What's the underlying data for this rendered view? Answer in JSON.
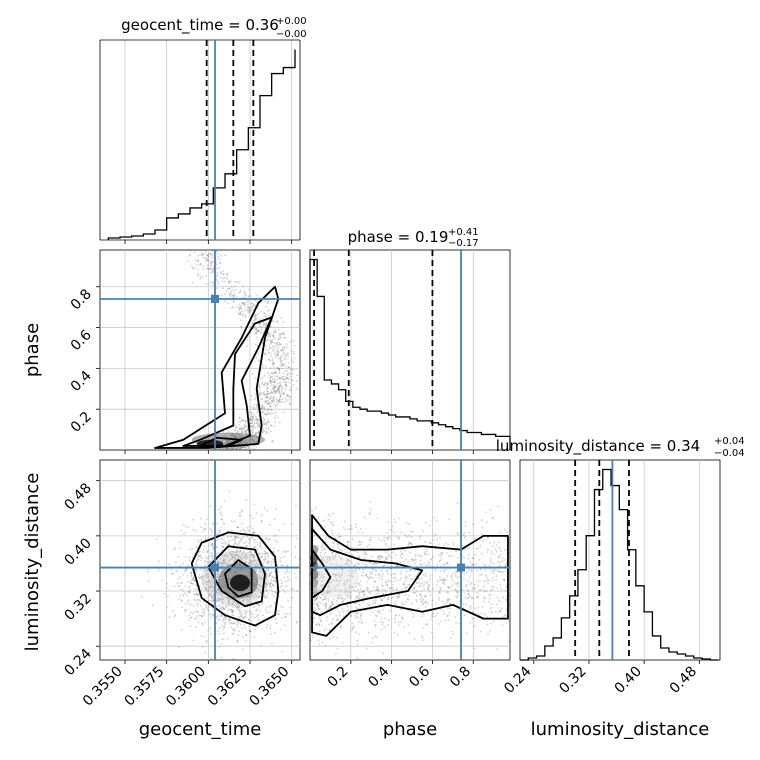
{
  "colors": {
    "truth": "#4682b4",
    "hist": "#000000",
    "grid": "#c8c8c8",
    "points": "#7f7f7f"
  },
  "chart_data": [
    {
      "id": "geocent_time_hist",
      "type": "histogram",
      "title_main": "geocent_time = 0.36",
      "title_sup": "+0.00",
      "title_sub": "−0.00",
      "xlim": [
        0.3535,
        0.3655
      ],
      "bins": [
        0.354,
        0.3547,
        0.3554,
        0.3561,
        0.3568,
        0.3575,
        0.3582,
        0.3589,
        0.3596,
        0.3603,
        0.361,
        0.3617,
        0.3624,
        0.3631,
        0.3638,
        0.3645,
        0.3652
      ],
      "counts": [
        0.01,
        0.015,
        0.02,
        0.03,
        0.05,
        0.11,
        0.13,
        0.16,
        0.18,
        0.26,
        0.33,
        0.45,
        0.56,
        0.72,
        0.83,
        0.86,
        0.95
      ],
      "quantiles": [
        0.3599,
        0.3615,
        0.3627
      ],
      "truth": 0.3604
    },
    {
      "id": "phase_hist",
      "type": "histogram",
      "title_main": "phase = 0.19",
      "title_sup": "+0.41",
      "title_sub": "−0.17",
      "xlim": [
        0.0,
        0.98
      ],
      "edges": [
        0.0,
        0.035,
        0.07,
        0.105,
        0.14,
        0.175,
        0.21,
        0.245,
        0.28,
        0.315,
        0.35,
        0.385,
        0.42,
        0.455,
        0.49,
        0.525,
        0.56,
        0.595,
        0.63,
        0.665,
        0.7,
        0.735,
        0.77,
        0.805,
        0.84,
        0.875,
        0.91,
        0.945,
        0.98
      ],
      "counts": [
        0.98,
        0.79,
        0.36,
        0.34,
        0.31,
        0.25,
        0.22,
        0.21,
        0.2,
        0.2,
        0.19,
        0.18,
        0.17,
        0.17,
        0.16,
        0.15,
        0.15,
        0.14,
        0.13,
        0.12,
        0.11,
        0.1,
        0.09,
        0.09,
        0.08,
        0.08,
        0.07,
        0.07
      ],
      "quantiles": [
        0.02,
        0.19,
        0.6
      ],
      "truth": 0.74
    },
    {
      "id": "luminosity_distance_hist",
      "type": "histogram",
      "title_main": "luminosity_distance = 0.34",
      "title_sup": "+0.04",
      "title_sub": "−0.04",
      "xlim": [
        0.22,
        0.51
      ],
      "edges": [
        0.22,
        0.232,
        0.244,
        0.256,
        0.268,
        0.28,
        0.292,
        0.304,
        0.316,
        0.328,
        0.34,
        0.352,
        0.364,
        0.376,
        0.388,
        0.4,
        0.412,
        0.424,
        0.436,
        0.448,
        0.46,
        0.472,
        0.484,
        0.496,
        0.508
      ],
      "counts": [
        0.0,
        0.01,
        0.02,
        0.07,
        0.11,
        0.21,
        0.32,
        0.45,
        0.62,
        0.85,
        0.95,
        0.87,
        0.75,
        0.55,
        0.37,
        0.24,
        0.12,
        0.06,
        0.04,
        0.03,
        0.02,
        0.01,
        0.005,
        0.0
      ],
      "quantiles": [
        0.3,
        0.335,
        0.378
      ],
      "truth": 0.354
    },
    {
      "id": "phase_vs_geocent_time",
      "type": "scatter-contour",
      "x": "geocent_time",
      "y": "phase",
      "truth": [
        0.3604,
        0.74
      ]
    },
    {
      "id": "luminosity_distance_vs_geocent_time",
      "type": "scatter-contour",
      "x": "geocent_time",
      "y": "luminosity_distance",
      "truth": [
        0.3604,
        0.354
      ]
    },
    {
      "id": "luminosity_distance_vs_phase",
      "type": "scatter-contour",
      "x": "phase",
      "y": "luminosity_distance",
      "truth": [
        0.74,
        0.354
      ]
    }
  ],
  "axes": {
    "geocent_time": {
      "label": "geocent_time",
      "ticks": [
        0.355,
        0.3575,
        0.36,
        0.3625,
        0.365
      ],
      "tick_labels": [
        "0.3550",
        "0.3575",
        "0.3600",
        "0.3625",
        "0.3650"
      ]
    },
    "phase": {
      "label": "phase",
      "ticks": [
        0.2,
        0.4,
        0.6,
        0.8
      ],
      "tick_labels": [
        "0.2",
        "0.4",
        "0.6",
        "0.8"
      ]
    },
    "luminosity_distance": {
      "label": "luminosity_distance",
      "ticks": [
        0.24,
        0.32,
        0.4,
        0.48
      ],
      "tick_labels": [
        "0.24",
        "0.32",
        "0.40",
        "0.48"
      ]
    }
  }
}
